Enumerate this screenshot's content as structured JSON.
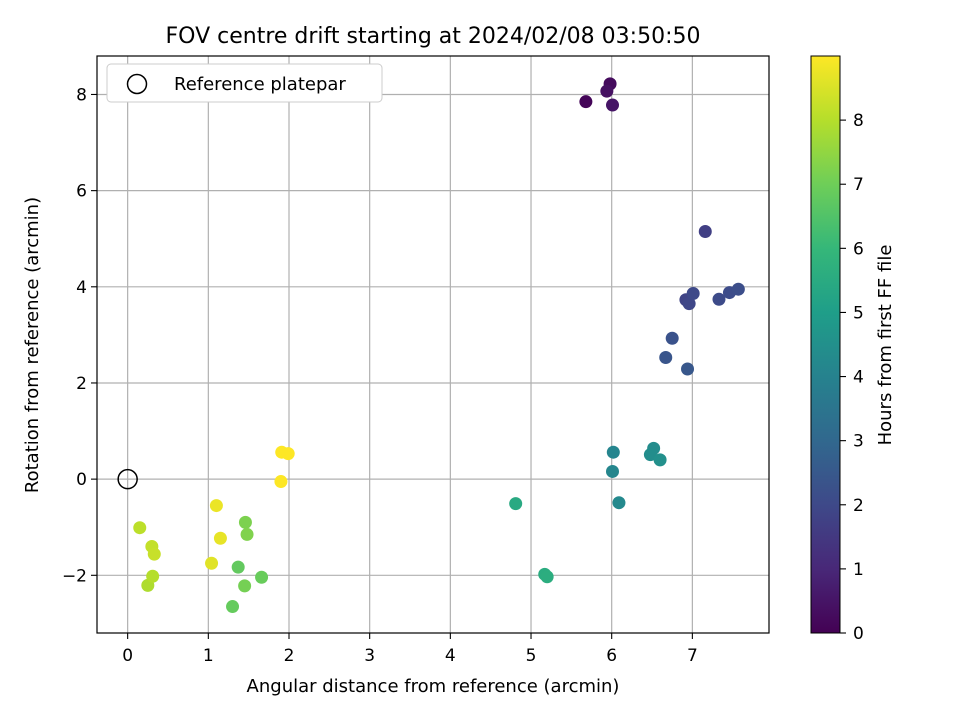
{
  "chart_data": {
    "type": "scatter",
    "title": "FOV centre drift starting at 2024/02/08 03:50:50",
    "xlabel": "Angular distance from reference (arcmin)",
    "ylabel": "Rotation from reference (arcmin)",
    "xlim": [
      -0.38,
      7.95
    ],
    "ylim": [
      -3.2,
      8.8
    ],
    "xticks": [
      0,
      1,
      2,
      3,
      4,
      5,
      6,
      7
    ],
    "yticks": [
      -2,
      0,
      2,
      4,
      6,
      8
    ],
    "ytick_labels": [
      "−2",
      "0",
      "2",
      "4",
      "6",
      "8"
    ],
    "grid": true,
    "legend": {
      "placement": "top-left",
      "entries": [
        "Reference platepar"
      ]
    },
    "reference_point": {
      "x": 0,
      "y": 0
    },
    "colorbar": {
      "label": "Hours from first FF file",
      "min": 0,
      "max": 9,
      "ticks": [
        0,
        1,
        2,
        3,
        4,
        5,
        6,
        7,
        8
      ],
      "colormap": [
        "#440154",
        "#482878",
        "#3e4989",
        "#31688e",
        "#26828e",
        "#1f9e89",
        "#35b779",
        "#6ece58",
        "#b5de2b",
        "#fde725"
      ]
    },
    "points": [
      {
        "x": 5.68,
        "y": 7.85,
        "h": 0.1
      },
      {
        "x": 5.98,
        "y": 8.22,
        "h": 0.25
      },
      {
        "x": 5.94,
        "y": 8.07,
        "h": 0.4
      },
      {
        "x": 6.01,
        "y": 7.78,
        "h": 0.5
      },
      {
        "x": 7.16,
        "y": 5.15,
        "h": 1.7
      },
      {
        "x": 6.92,
        "y": 3.73,
        "h": 1.85
      },
      {
        "x": 6.96,
        "y": 3.65,
        "h": 1.95
      },
      {
        "x": 7.01,
        "y": 3.86,
        "h": 2.0
      },
      {
        "x": 7.33,
        "y": 3.74,
        "h": 2.05
      },
      {
        "x": 7.46,
        "y": 3.88,
        "h": 2.1
      },
      {
        "x": 7.57,
        "y": 3.95,
        "h": 2.15
      },
      {
        "x": 6.75,
        "y": 2.93,
        "h": 2.3
      },
      {
        "x": 6.67,
        "y": 2.53,
        "h": 2.4
      },
      {
        "x": 6.94,
        "y": 2.29,
        "h": 2.45
      },
      {
        "x": 6.02,
        "y": 0.56,
        "h": 4.1
      },
      {
        "x": 6.01,
        "y": 0.16,
        "h": 4.15
      },
      {
        "x": 6.09,
        "y": -0.49,
        "h": 4.25
      },
      {
        "x": 6.52,
        "y": 0.64,
        "h": 4.35
      },
      {
        "x": 6.48,
        "y": 0.51,
        "h": 4.4
      },
      {
        "x": 6.6,
        "y": 0.4,
        "h": 4.5
      },
      {
        "x": 4.81,
        "y": -0.51,
        "h": 5.45
      },
      {
        "x": 5.17,
        "y": -1.98,
        "h": 5.55
      },
      {
        "x": 5.2,
        "y": -2.03,
        "h": 5.6
      },
      {
        "x": 1.37,
        "y": -1.83,
        "h": 6.8
      },
      {
        "x": 1.3,
        "y": -2.65,
        "h": 6.85
      },
      {
        "x": 1.66,
        "y": -2.04,
        "h": 6.9
      },
      {
        "x": 1.45,
        "y": -2.22,
        "h": 7.1
      },
      {
        "x": 1.46,
        "y": -0.9,
        "h": 7.2
      },
      {
        "x": 1.48,
        "y": -1.15,
        "h": 7.25
      },
      {
        "x": 0.25,
        "y": -2.21,
        "h": 7.9
      },
      {
        "x": 0.31,
        "y": -2.02,
        "h": 8.0
      },
      {
        "x": 0.15,
        "y": -1.01,
        "h": 8.1
      },
      {
        "x": 0.3,
        "y": -1.4,
        "h": 8.2
      },
      {
        "x": 0.33,
        "y": -1.56,
        "h": 8.25
      },
      {
        "x": 1.04,
        "y": -1.75,
        "h": 8.6
      },
      {
        "x": 1.15,
        "y": -1.23,
        "h": 8.7
      },
      {
        "x": 1.1,
        "y": -0.55,
        "h": 8.75
      },
      {
        "x": 1.91,
        "y": 0.56,
        "h": 9.0
      },
      {
        "x": 1.99,
        "y": 0.53,
        "h": 9.0
      },
      {
        "x": 1.9,
        "y": -0.05,
        "h": 9.0
      }
    ]
  }
}
